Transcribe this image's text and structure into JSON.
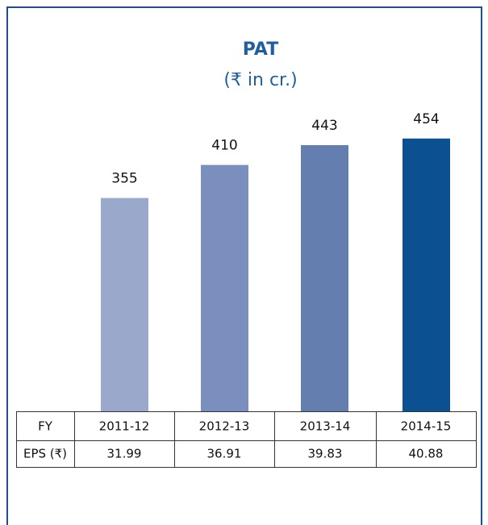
{
  "chart_data": {
    "type": "bar",
    "title": "PAT",
    "subtitle": "(₹ in cr.)",
    "categories": [
      "2011-12",
      "2012-13",
      "2013-14",
      "2014-15"
    ],
    "values": [
      355,
      410,
      443,
      454
    ],
    "colors": [
      "#9aa8cc",
      "#7b8fbf",
      "#647eb0",
      "#0b5191"
    ],
    "table": {
      "row_headers": [
        "FY",
        "EPS (₹)"
      ],
      "eps": [
        31.99,
        36.91,
        39.83,
        40.88
      ]
    }
  }
}
